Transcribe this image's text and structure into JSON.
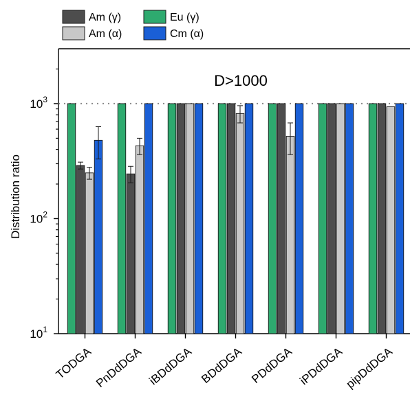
{
  "chart_data": {
    "type": "bar",
    "title": "",
    "xlabel": "",
    "ylabel": "Distribution ratio",
    "yscale": "log",
    "ylim": [
      10,
      3000
    ],
    "yticks": [
      {
        "value": 10,
        "base": "10",
        "exp": "1"
      },
      {
        "value": 100,
        "base": "10",
        "exp": "2"
      },
      {
        "value": 1000,
        "base": "10",
        "exp": "3"
      }
    ],
    "categories": [
      "TODGA",
      "PnDdDGA",
      "iBDdDGA",
      "BDdDGA",
      "PDdDGA",
      "iPDdDGA",
      "pipDdDGA"
    ],
    "series": [
      {
        "name": "Eu (γ)",
        "color": "#2eaa6f",
        "values": [
          1000,
          1000,
          1000,
          1000,
          1000,
          1000,
          1000
        ],
        "errors": [
          0,
          0,
          0,
          0,
          0,
          0,
          0
        ]
      },
      {
        "name": "Am (γ)",
        "color": "#4d4d4d",
        "values": [
          290,
          245,
          1000,
          1000,
          1000,
          1000,
          1000
        ],
        "errors": [
          20,
          40,
          0,
          0,
          0,
          0,
          0
        ]
      },
      {
        "name": "Am (α)",
        "color": "#c8c8c8",
        "values": [
          250,
          430,
          1000,
          820,
          520,
          1000,
          940
        ],
        "errors": [
          30,
          70,
          0,
          140,
          160,
          0,
          0
        ]
      },
      {
        "name": "Cm (α)",
        "color": "#1a5fd6",
        "values": [
          480,
          1000,
          1000,
          1000,
          1000,
          1000,
          1000
        ],
        "errors": [
          150,
          0,
          0,
          0,
          0,
          0,
          0
        ]
      }
    ],
    "reference_line": {
      "value": 1000,
      "style": "dotted",
      "color": "#888888"
    },
    "annotation": "D>1000",
    "legend_placement": "top-left, outside plot",
    "legend_order": [
      "Am (γ)",
      "Eu (γ)",
      "Am (α)",
      "Cm (α)"
    ],
    "grid": false
  }
}
